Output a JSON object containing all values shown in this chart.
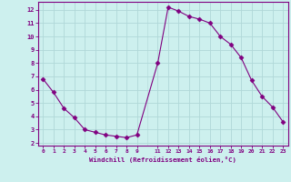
{
  "x": [
    0,
    1,
    2,
    3,
    4,
    5,
    6,
    7,
    8,
    9,
    11,
    12,
    13,
    14,
    15,
    16,
    17,
    18,
    19,
    20,
    21,
    22,
    23
  ],
  "y": [
    6.8,
    5.8,
    4.6,
    3.9,
    3.0,
    2.8,
    2.6,
    2.5,
    2.4,
    2.6,
    8.0,
    12.2,
    11.9,
    11.5,
    11.3,
    11.0,
    10.0,
    9.4,
    8.4,
    6.7,
    5.5,
    4.7,
    3.6
  ],
  "line_color": "#800080",
  "marker": "D",
  "marker_size": 2.5,
  "bg_color": "#cdf0ee",
  "grid_color": "#b0d8d8",
  "xlabel": "Windchill (Refroidissement éolien,°C)",
  "xlabel_color": "#800080",
  "tick_color": "#800080",
  "spine_color": "#800080",
  "xlim": [
    -0.5,
    23.5
  ],
  "ylim": [
    1.8,
    12.6
  ],
  "yticks": [
    2,
    3,
    4,
    5,
    6,
    7,
    8,
    9,
    10,
    11,
    12
  ],
  "xticks": [
    0,
    1,
    2,
    3,
    4,
    5,
    6,
    7,
    8,
    9,
    11,
    12,
    13,
    14,
    15,
    16,
    17,
    18,
    19,
    20,
    21,
    22,
    23
  ]
}
